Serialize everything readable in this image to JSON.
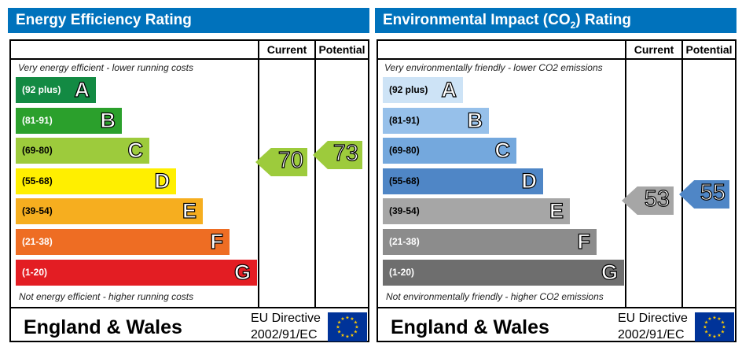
{
  "panels": [
    {
      "title": "Energy Efficiency Rating",
      "title_sub": "",
      "title_after": "",
      "current_label": "Current",
      "potential_label": "Potential",
      "top_note": "Very energy efficient - lower running costs",
      "bottom_note": "Not energy efficient - higher running costs",
      "region": "England & Wales",
      "directive_line1": "EU Directive",
      "directive_line2": "2002/91/EC",
      "bands": [
        {
          "range": "(92 plus)",
          "letter": "A",
          "color": "#138a43",
          "text": "#ffffff"
        },
        {
          "range": "(81-91)",
          "letter": "B",
          "color": "#2ba02c",
          "text": "#ffffff"
        },
        {
          "range": "(69-80)",
          "letter": "C",
          "color": "#9dcb3c",
          "text": "#000000"
        },
        {
          "range": "(55-68)",
          "letter": "D",
          "color": "#ffef00",
          "text": "#000000"
        },
        {
          "range": "(39-54)",
          "letter": "E",
          "color": "#f6ae1f",
          "text": "#000000"
        },
        {
          "range": "(21-38)",
          "letter": "F",
          "color": "#ee6d23",
          "text": "#ffffff"
        },
        {
          "range": "(1-20)",
          "letter": "G",
          "color": "#e31d23",
          "text": "#ffffff"
        }
      ],
      "current": {
        "value": "70",
        "color": "#9dcb3c"
      },
      "potential": {
        "value": "73",
        "color": "#9dcb3c"
      }
    },
    {
      "title": "Environmental Impact (CO",
      "title_sub": "2",
      "title_after": ") Rating",
      "current_label": "Current",
      "potential_label": "Potential",
      "top_note": "Very environmentally friendly - lower CO2 emissions",
      "bottom_note": "Not environmentally friendly - higher CO2 emissions",
      "region": "England & Wales",
      "directive_line1": "EU Directive",
      "directive_line2": "2002/91/EC",
      "bands": [
        {
          "range": "(92 plus)",
          "letter": "A",
          "color": "#cde3f6",
          "text": "#000000"
        },
        {
          "range": "(81-91)",
          "letter": "B",
          "color": "#96c0ea",
          "text": "#000000"
        },
        {
          "range": "(69-80)",
          "letter": "C",
          "color": "#74a8dd",
          "text": "#000000"
        },
        {
          "range": "(55-68)",
          "letter": "D",
          "color": "#4f86c6",
          "text": "#000000"
        },
        {
          "range": "(39-54)",
          "letter": "E",
          "color": "#a6a6a6",
          "text": "#000000"
        },
        {
          "range": "(21-38)",
          "letter": "F",
          "color": "#8c8c8c",
          "text": "#ffffff"
        },
        {
          "range": "(1-20)",
          "letter": "G",
          "color": "#6e6e6e",
          "text": "#ffffff"
        }
      ],
      "current": {
        "value": "53",
        "color": "#a6a6a6"
      },
      "potential": {
        "value": "55",
        "color": "#4f86c6"
      }
    }
  ],
  "chart_data": [
    {
      "type": "bar",
      "title": "Energy Efficiency Rating",
      "categories": [
        "A",
        "B",
        "C",
        "D",
        "E",
        "F",
        "G"
      ],
      "ranges": [
        "92 plus",
        "81-91",
        "69-80",
        "55-68",
        "39-54",
        "21-38",
        "1-20"
      ],
      "current": 70,
      "potential": 73
    },
    {
      "type": "bar",
      "title": "Environmental Impact (CO2) Rating",
      "categories": [
        "A",
        "B",
        "C",
        "D",
        "E",
        "F",
        "G"
      ],
      "ranges": [
        "92 plus",
        "81-91",
        "69-80",
        "55-68",
        "39-54",
        "21-38",
        "1-20"
      ],
      "current": 53,
      "potential": 55
    }
  ]
}
